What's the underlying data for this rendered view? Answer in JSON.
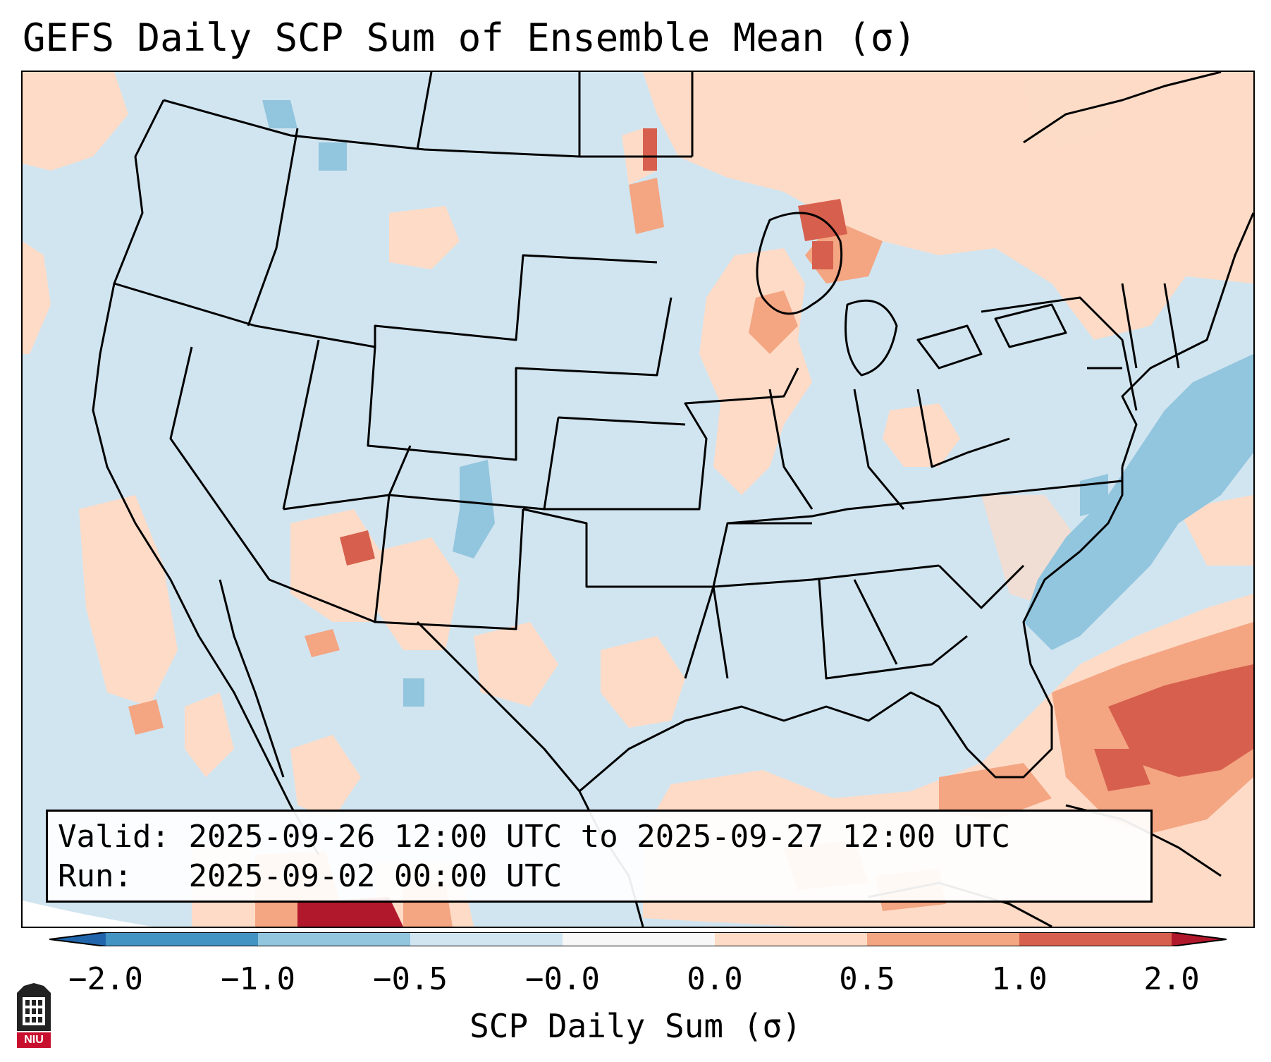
{
  "title": "GEFS Daily SCP Sum of Ensemble Mean (σ)",
  "info": {
    "valid_label": "Valid:",
    "valid_value": "2025-09-26 12:00 UTC to 2025-09-27 12:00 UTC",
    "run_label": "Run:",
    "run_value": "2025-09-02 00:00 UTC"
  },
  "colorbar": {
    "label": "SCP Daily Sum (σ)",
    "ticks": [
      "−2.0",
      "−1.0",
      "−0.5",
      "−0.0",
      "0.0",
      "0.5",
      "1.0",
      "2.0"
    ],
    "bins": [
      {
        "from": "<-2.0",
        "color": "#2166ac"
      },
      {
        "from": "-2.0",
        "to": "-1.0",
        "color": "#4393c3"
      },
      {
        "from": "-1.0",
        "to": "-0.5",
        "color": "#92c5de"
      },
      {
        "from": "-0.5",
        "to": "-0.0",
        "color": "#d1e5f0"
      },
      {
        "from": "-0.0",
        "to": "0.0",
        "color": "#f7f7f7"
      },
      {
        "from": "0.0",
        "to": "0.5",
        "color": "#fddbc7"
      },
      {
        "from": "0.5",
        "to": "1.0",
        "color": "#f4a582"
      },
      {
        "from": "1.0",
        "to": "2.0",
        "color": "#d6604d"
      },
      {
        "from": ">2.0",
        "color": "#b2182b"
      }
    ]
  },
  "logo": {
    "text": "NIU",
    "name": "Northern Illinois University"
  },
  "colors": {
    "light_blue": "#d1e5f0",
    "mid_blue": "#92c5de",
    "light_red": "#fddbc7",
    "mid_red": "#f4a582",
    "dark_red": "#d6604d",
    "deep_red": "#b2182b"
  }
}
